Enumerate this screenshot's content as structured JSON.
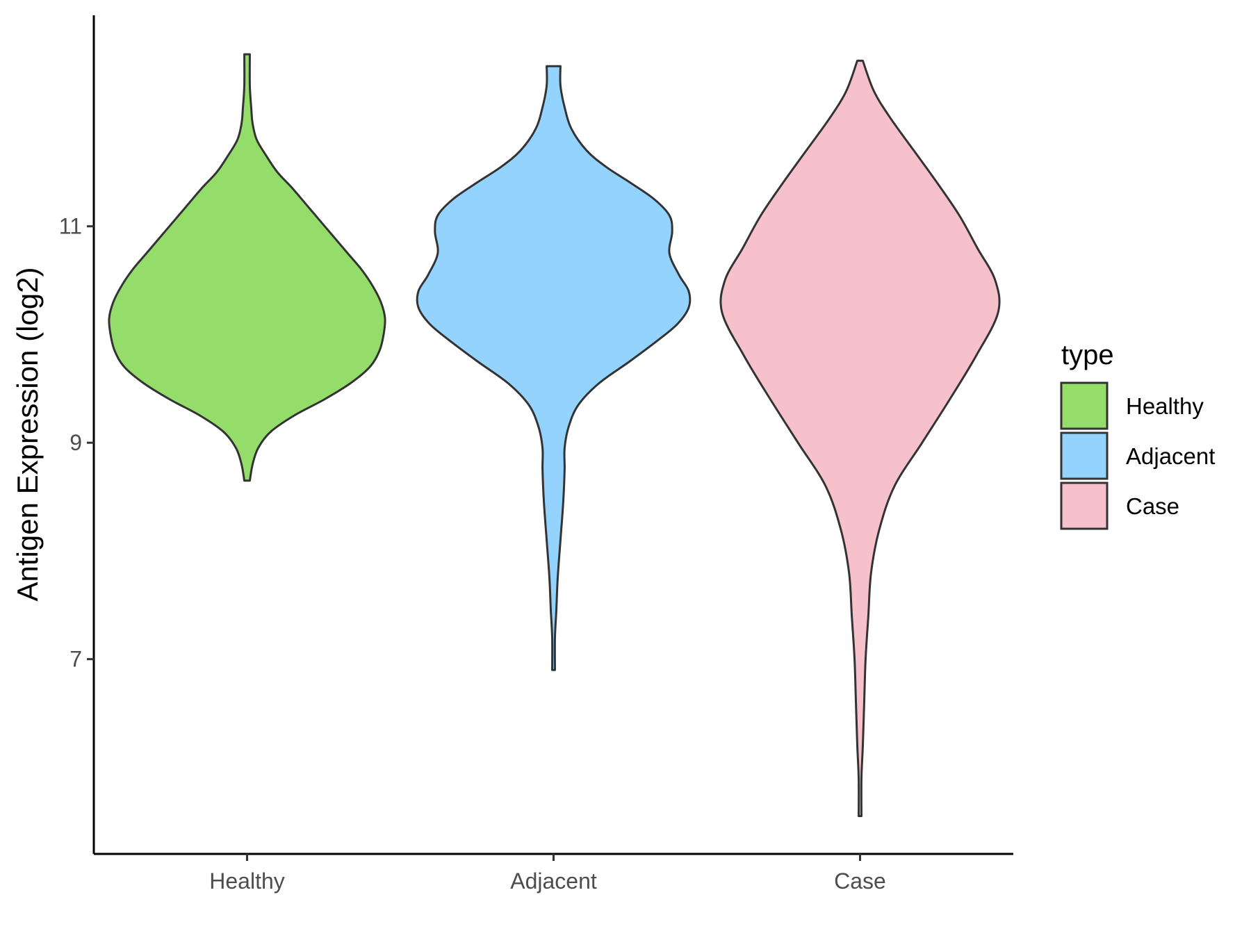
{
  "chart_data": {
    "type": "violin",
    "ylabel": "Antigen Expression (log2)",
    "xlabel": "",
    "ylim": [
      5.2,
      12.95
    ],
    "yticks": [
      7,
      9,
      11
    ],
    "categories": [
      "Healthy",
      "Adjacent",
      "Case"
    ],
    "legend": {
      "title": "type",
      "placement": "right",
      "entries": [
        "Healthy",
        "Adjacent",
        "Case"
      ]
    },
    "series": [
      {
        "name": "Healthy",
        "color": "#95dd6a",
        "range": [
          8.65,
          12.59
        ],
        "profile": [
          [
            8.65,
            0.02
          ],
          [
            8.8,
            0.04
          ],
          [
            8.95,
            0.08
          ],
          [
            9.1,
            0.17
          ],
          [
            9.25,
            0.34
          ],
          [
            9.4,
            0.56
          ],
          [
            9.55,
            0.75
          ],
          [
            9.7,
            0.89
          ],
          [
            9.85,
            0.96
          ],
          [
            10.0,
            0.99
          ],
          [
            10.15,
            1.0
          ],
          [
            10.3,
            0.97
          ],
          [
            10.45,
            0.91
          ],
          [
            10.6,
            0.83
          ],
          [
            10.75,
            0.73
          ],
          [
            10.9,
            0.63
          ],
          [
            11.05,
            0.53
          ],
          [
            11.2,
            0.43
          ],
          [
            11.35,
            0.33
          ],
          [
            11.5,
            0.22
          ],
          [
            11.65,
            0.14
          ],
          [
            11.8,
            0.07
          ],
          [
            11.95,
            0.04
          ],
          [
            12.1,
            0.03
          ],
          [
            12.3,
            0.02
          ],
          [
            12.59,
            0.02
          ]
        ]
      },
      {
        "name": "Adjacent",
        "color": "#93d3fd",
        "range": [
          6.9,
          12.48
        ],
        "profile": [
          [
            6.9,
            0.01
          ],
          [
            7.2,
            0.01
          ],
          [
            7.45,
            0.02
          ],
          [
            7.75,
            0.03
          ],
          [
            8.1,
            0.05
          ],
          [
            8.45,
            0.07
          ],
          [
            8.75,
            0.08
          ],
          [
            8.95,
            0.08
          ],
          [
            9.15,
            0.11
          ],
          [
            9.35,
            0.18
          ],
          [
            9.55,
            0.33
          ],
          [
            9.75,
            0.55
          ],
          [
            9.95,
            0.76
          ],
          [
            10.1,
            0.9
          ],
          [
            10.25,
            0.98
          ],
          [
            10.4,
            0.98
          ],
          [
            10.55,
            0.91
          ],
          [
            10.75,
            0.84
          ],
          [
            10.95,
            0.86
          ],
          [
            11.1,
            0.84
          ],
          [
            11.25,
            0.73
          ],
          [
            11.4,
            0.56
          ],
          [
            11.55,
            0.38
          ],
          [
            11.7,
            0.24
          ],
          [
            11.9,
            0.13
          ],
          [
            12.1,
            0.08
          ],
          [
            12.3,
            0.05
          ],
          [
            12.48,
            0.05
          ]
        ]
      },
      {
        "name": "Case",
        "color": "#f7c1cc",
        "range": [
          5.55,
          12.53
        ],
        "profile": [
          [
            5.55,
            0.01
          ],
          [
            5.9,
            0.01
          ],
          [
            6.2,
            0.02
          ],
          [
            6.6,
            0.03
          ],
          [
            7.0,
            0.04
          ],
          [
            7.4,
            0.06
          ],
          [
            7.8,
            0.08
          ],
          [
            8.2,
            0.14
          ],
          [
            8.6,
            0.25
          ],
          [
            9.0,
            0.45
          ],
          [
            9.4,
            0.65
          ],
          [
            9.8,
            0.84
          ],
          [
            10.2,
            1.0
          ],
          [
            10.5,
            0.98
          ],
          [
            10.8,
            0.85
          ],
          [
            11.1,
            0.72
          ],
          [
            11.4,
            0.56
          ],
          [
            11.7,
            0.39
          ],
          [
            12.0,
            0.22
          ],
          [
            12.25,
            0.1
          ],
          [
            12.53,
            0.02
          ]
        ]
      }
    ]
  }
}
